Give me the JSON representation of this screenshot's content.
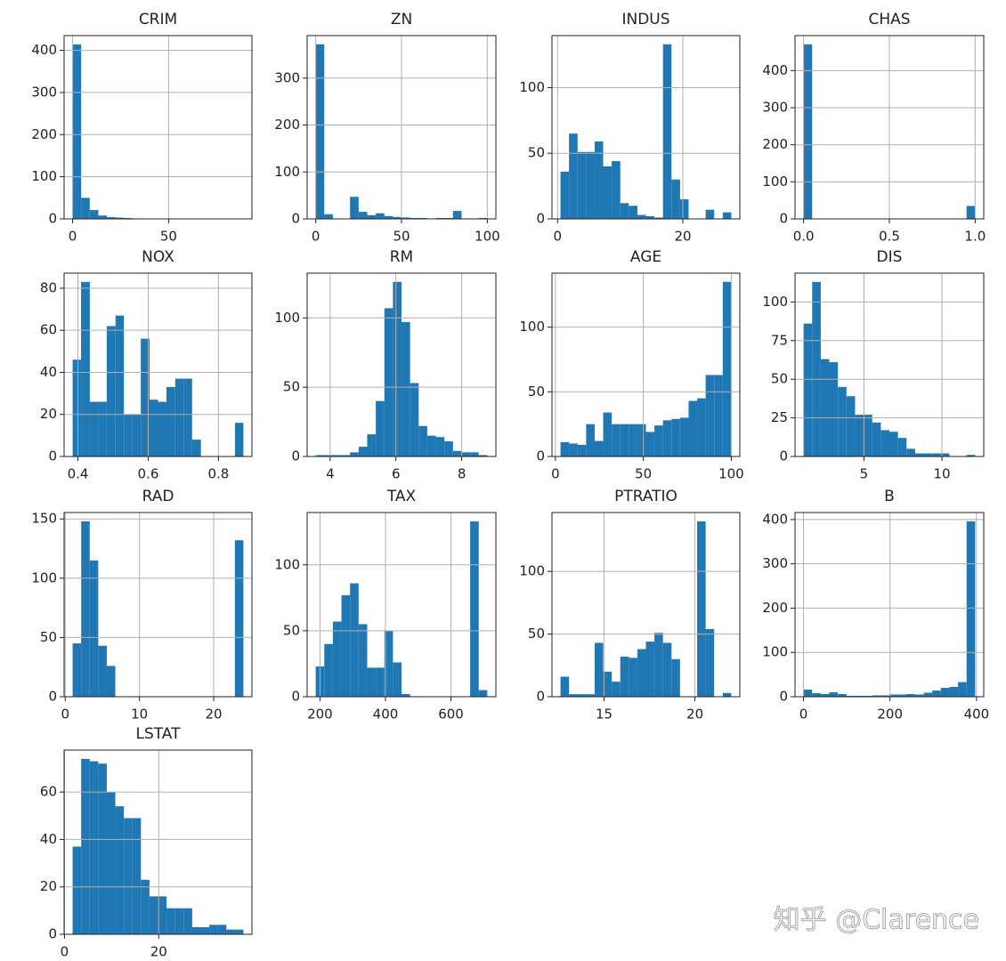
{
  "watermark": "知乎 @Clarence",
  "chart_data": [
    {
      "type": "histogram",
      "title": "CRIM",
      "color": "#1f77b4",
      "grid": true,
      "bins": [
        0.01,
        4.45,
        8.9,
        13.35,
        17.8,
        22.25,
        26.7,
        31.15,
        35.59,
        40.04,
        44.49,
        48.94,
        53.39,
        57.84,
        62.29,
        66.73,
        71.18,
        75.63,
        80.08,
        84.53,
        88.98
      ],
      "values": [
        414,
        50,
        21,
        8,
        4,
        3,
        2,
        1,
        1,
        0,
        0,
        0,
        0,
        0,
        0,
        0,
        0,
        1,
        0,
        1
      ],
      "xlim": [
        -4.44,
        93.42
      ],
      "ylim": [
        0,
        435
      ],
      "xticks": [
        0,
        50
      ],
      "yticks": [
        0,
        100,
        200,
        300,
        400
      ]
    },
    {
      "type": "histogram",
      "title": "ZN",
      "color": "#1f77b4",
      "grid": true,
      "bins": [
        0,
        5,
        10,
        15,
        20,
        25,
        30,
        35,
        40,
        45,
        50,
        55,
        60,
        65,
        70,
        75,
        80,
        85,
        90,
        95,
        100
      ],
      "values": [
        372,
        10,
        0,
        0,
        47,
        15,
        8,
        12,
        6,
        4,
        3,
        2,
        2,
        0,
        2,
        2,
        17,
        1,
        1,
        2
      ],
      "xlim": [
        -5,
        105
      ],
      "ylim": [
        0,
        390.6
      ],
      "xticks": [
        0,
        50,
        100
      ],
      "yticks": [
        0,
        100,
        200,
        300
      ]
    },
    {
      "type": "histogram",
      "title": "INDUS",
      "color": "#1f77b4",
      "grid": true,
      "bins": [
        0.46,
        1.82,
        3.19,
        4.55,
        5.92,
        7.28,
        8.64,
        10.01,
        11.37,
        12.74,
        14.1,
        15.46,
        16.83,
        18.19,
        19.56,
        20.92,
        22.28,
        23.65,
        25.01,
        26.38,
        27.74
      ],
      "values": [
        36,
        65,
        51,
        51,
        59,
        40,
        44,
        12,
        10,
        3,
        2,
        1,
        133,
        30,
        15,
        0,
        0,
        7,
        0,
        5
      ],
      "xlim": [
        -0.9,
        29.1
      ],
      "ylim": [
        0,
        139.65
      ],
      "xticks": [
        0,
        20
      ],
      "yticks": [
        0,
        50,
        100
      ]
    },
    {
      "type": "histogram",
      "title": "CHAS",
      "color": "#1f77b4",
      "grid": true,
      "bins": [
        0,
        0.05,
        0.1,
        0.15,
        0.2,
        0.25,
        0.3,
        0.35,
        0.4,
        0.45,
        0.5,
        0.55,
        0.6,
        0.65,
        0.7,
        0.75,
        0.8,
        0.85,
        0.9,
        0.95,
        1
      ],
      "values": [
        471,
        0,
        0,
        0,
        0,
        0,
        0,
        0,
        0,
        0,
        0,
        0,
        0,
        0,
        0,
        0,
        0,
        0,
        0,
        35
      ],
      "xlim": [
        -0.05,
        1.05
      ],
      "ylim": [
        0,
        494.55
      ],
      "xticks": [
        {
          "value": 0,
          "label": "0.0"
        },
        0.5,
        {
          "value": 1,
          "label": "1.0"
        }
      ],
      "yticks": [
        0,
        100,
        200,
        300,
        400
      ]
    },
    {
      "type": "histogram",
      "title": "NOX",
      "color": "#1f77b4",
      "grid": true,
      "bins": [
        0.385,
        0.409,
        0.434,
        0.458,
        0.482,
        0.507,
        0.531,
        0.555,
        0.579,
        0.604,
        0.628,
        0.652,
        0.677,
        0.701,
        0.725,
        0.75,
        0.774,
        0.798,
        0.822,
        0.847,
        0.871
      ],
      "values": [
        46,
        83,
        26,
        26,
        62,
        67,
        20,
        20,
        56,
        27,
        26,
        33,
        37,
        37,
        8,
        0,
        0,
        0,
        0,
        16
      ],
      "xlim": [
        0.3607,
        0.8953
      ],
      "ylim": [
        0,
        87.15
      ],
      "xticks": [
        0.4,
        0.6,
        0.8
      ],
      "yticks": [
        0,
        20,
        40,
        60,
        80
      ]
    },
    {
      "type": "histogram",
      "title": "RM",
      "color": "#1f77b4",
      "grid": true,
      "bins": [
        3.561,
        3.822,
        4.083,
        4.344,
        4.605,
        4.866,
        5.127,
        5.388,
        5.649,
        5.91,
        6.171,
        6.431,
        6.692,
        6.953,
        7.214,
        7.475,
        7.736,
        7.997,
        8.258,
        8.519,
        8.78
      ],
      "values": [
        1,
        1,
        1,
        1,
        3,
        7,
        16,
        40,
        107,
        126,
        97,
        53,
        22,
        15,
        14,
        11,
        4,
        3,
        3,
        1
      ],
      "xlim": [
        3.3,
        9.04
      ],
      "ylim": [
        0,
        132.3
      ],
      "xticks": [
        4,
        6,
        8
      ],
      "yticks": [
        0,
        50,
        100
      ]
    },
    {
      "type": "histogram",
      "title": "AGE",
      "color": "#1f77b4",
      "grid": true,
      "bins": [
        2.9,
        7.755,
        12.61,
        17.465,
        22.32,
        27.175,
        32.03,
        36.885,
        41.74,
        46.595,
        51.45,
        56.305,
        61.16,
        66.015,
        70.87,
        75.725,
        80.58,
        85.435,
        90.29,
        95.145,
        100
      ],
      "values": [
        11,
        10,
        9,
        25,
        12,
        34,
        25,
        25,
        25,
        25,
        19,
        24,
        28,
        29,
        30,
        43,
        45,
        63,
        63,
        135
      ],
      "xlim": [
        -1.955,
        104.855
      ],
      "ylim": [
        0,
        141.75
      ],
      "xticks": [
        0,
        50,
        100
      ],
      "yticks": [
        0,
        50,
        100
      ]
    },
    {
      "type": "histogram",
      "title": "DIS",
      "color": "#1f77b4",
      "grid": true,
      "bins": [
        1.13,
        1.68,
        2.23,
        2.78,
        3.33,
        3.88,
        4.43,
        4.98,
        5.53,
        6.08,
        6.63,
        7.18,
        7.73,
        8.28,
        8.83,
        9.38,
        9.93,
        10.48,
        11.03,
        11.58,
        12.13
      ],
      "values": [
        86,
        113,
        63,
        61,
        45,
        39,
        27,
        27,
        22,
        17,
        16,
        12,
        5,
        2,
        2,
        2,
        2,
        0,
        0,
        1
      ],
      "xlim": [
        0.58,
        12.68
      ],
      "ylim": [
        0,
        118.65
      ],
      "xticks": [
        5,
        10
      ],
      "yticks": [
        0,
        25,
        50,
        75,
        100
      ]
    },
    {
      "type": "histogram",
      "title": "RAD",
      "color": "#1f77b4",
      "grid": true,
      "bins": [
        1,
        2.15,
        3.3,
        4.45,
        5.6,
        6.75,
        7.9,
        9.05,
        10.2,
        11.35,
        12.5,
        13.65,
        14.8,
        15.95,
        17.1,
        18.25,
        19.4,
        20.55,
        21.7,
        22.85,
        24
      ],
      "values": [
        45,
        148,
        115,
        43,
        26,
        0,
        0,
        0,
        0,
        0,
        0,
        0,
        0,
        0,
        0,
        0,
        0,
        0,
        0,
        132
      ],
      "xlim": [
        -0.15,
        25.15
      ],
      "ylim": [
        0,
        155.4
      ],
      "xticks": [
        0,
        10,
        20
      ],
      "yticks": [
        0,
        50,
        100,
        150
      ]
    },
    {
      "type": "histogram",
      "title": "TAX",
      "color": "#1f77b4",
      "grid": true,
      "bins": [
        187,
        213.2,
        239.4,
        265.6,
        291.8,
        318,
        344.2,
        370.4,
        396.6,
        422.8,
        449,
        475.2,
        501.4,
        527.6,
        553.8,
        580,
        606.2,
        632.4,
        658.6,
        684.8,
        711
      ],
      "values": [
        23,
        40,
        57,
        77,
        86,
        55,
        22,
        22,
        50,
        26,
        2,
        0,
        0,
        0,
        0,
        0,
        0,
        0,
        133,
        5
      ],
      "xlim": [
        160.8,
        737.2
      ],
      "ylim": [
        0,
        139.65
      ],
      "xticks": [
        200,
        400,
        600
      ],
      "yticks": [
        0,
        50,
        100
      ]
    },
    {
      "type": "histogram",
      "title": "PTRATIO",
      "color": "#1f77b4",
      "grid": true,
      "bins": [
        12.6,
        13.07,
        13.54,
        14.01,
        14.48,
        14.95,
        15.42,
        15.89,
        16.36,
        16.83,
        17.3,
        17.77,
        18.24,
        18.71,
        19.18,
        19.65,
        20.12,
        20.59,
        21.06,
        21.53,
        22
      ],
      "values": [
        16,
        2,
        2,
        2,
        43,
        20,
        12,
        32,
        31,
        38,
        44,
        51,
        43,
        30,
        0,
        0,
        140,
        54,
        0,
        3
      ],
      "xlim": [
        12.13,
        22.47
      ],
      "ylim": [
        0,
        147
      ],
      "xticks": [
        15,
        20
      ],
      "yticks": [
        0,
        50,
        100
      ]
    },
    {
      "type": "histogram",
      "title": "B",
      "color": "#1f77b4",
      "grid": true,
      "bins": [
        0.32,
        20.149,
        39.978,
        59.807,
        79.636,
        99.465,
        119.294,
        139.123,
        158.952,
        178.781,
        198.61,
        218.439,
        238.268,
        258.097,
        277.926,
        297.755,
        317.584,
        337.413,
        357.242,
        377.071,
        396.9
      ],
      "values": [
        16,
        8,
        6,
        10,
        6,
        2,
        2,
        2,
        3,
        3,
        5,
        5,
        6,
        5,
        9,
        14,
        20,
        22,
        33,
        396
      ],
      "xlim": [
        -19.5,
        416.7
      ],
      "ylim": [
        0,
        415.8
      ],
      "xticks": [
        0,
        200,
        400
      ],
      "yticks": [
        0,
        100,
        200,
        300,
        400
      ]
    },
    {
      "type": "histogram",
      "title": "LSTAT",
      "color": "#1f77b4",
      "grid": true,
      "bins": [
        1.73,
        3.542,
        5.354,
        7.166,
        8.978,
        10.79,
        12.602,
        14.414,
        16.226,
        18.038,
        19.85,
        21.662,
        23.474,
        25.286,
        27.098,
        28.91,
        30.722,
        32.534,
        34.346,
        36.158,
        37.97
      ],
      "values": [
        37,
        74,
        73,
        72,
        60,
        54,
        49,
        49,
        23,
        16,
        16,
        11,
        11,
        11,
        3,
        3,
        4,
        4,
        2,
        2
      ],
      "xlim": [
        -0.08,
        39.78
      ],
      "ylim": [
        0,
        77.7
      ],
      "xticks": [
        0,
        20
      ],
      "yticks": [
        0,
        20,
        40,
        60
      ]
    }
  ]
}
